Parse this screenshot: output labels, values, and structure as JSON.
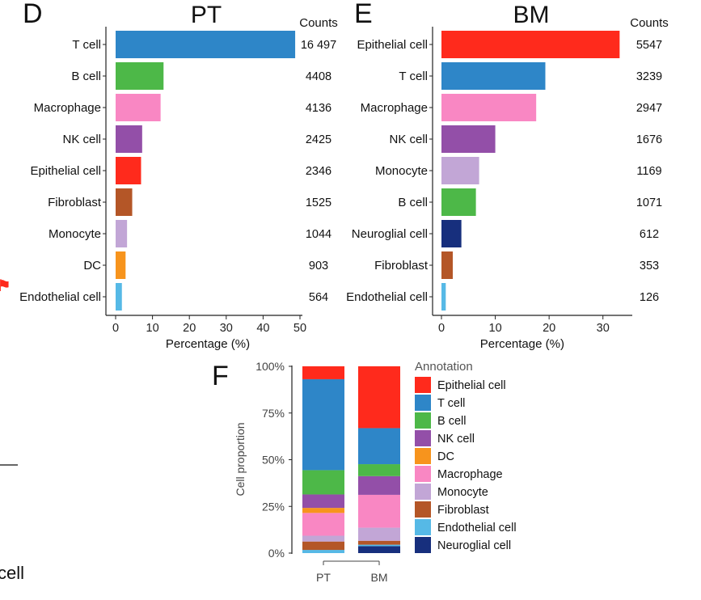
{
  "panel_labels": {
    "D": "D",
    "E": "E",
    "F": "F"
  },
  "stray": {
    "left_icon": "⚑",
    "cell_fragment": "cell"
  },
  "chart_data": [
    {
      "id": "PT",
      "type": "bar",
      "orientation": "horizontal",
      "title": "PT",
      "counts_header": "Counts",
      "xlabel": "Percentage (%)",
      "xlim": [
        0,
        50
      ],
      "xticks": [
        0,
        10,
        20,
        30,
        40,
        50
      ],
      "categories": [
        "T cell",
        "B cell",
        "Macrophage",
        "NK cell",
        "Epithelial cell",
        "Fibroblast",
        "Monocyte",
        "DC",
        "Endothelial cell"
      ],
      "values": [
        48.7,
        13.0,
        12.2,
        7.2,
        6.9,
        4.5,
        3.1,
        2.7,
        1.7
      ],
      "count_labels": [
        "16 497",
        "4408",
        "4136",
        "2425",
        "2346",
        "1525",
        "1044",
        "903",
        "564"
      ],
      "colors": [
        "#2E86C8",
        "#4DB848",
        "#F987C3",
        "#934FA8",
        "#FF2A1C",
        "#B45627",
        "#C2A6D6",
        "#F7941D",
        "#56B9E6"
      ]
    },
    {
      "id": "BM",
      "type": "bar",
      "orientation": "horizontal",
      "title": "BM",
      "counts_header": "Counts",
      "xlabel": "Percentage (%)",
      "xlim": [
        0,
        35
      ],
      "xticks": [
        0,
        10,
        20,
        30
      ],
      "categories": [
        "Epithelial cell",
        "T cell",
        "Macrophage",
        "NK cell",
        "Monocyte",
        "B cell",
        "Neuroglial cell",
        "Fibroblast",
        "Endothelial cell"
      ],
      "values": [
        33.1,
        19.3,
        17.6,
        10.0,
        7.0,
        6.4,
        3.7,
        2.1,
        0.8
      ],
      "count_labels": [
        "5547",
        "3239",
        "2947",
        "1676",
        "1169",
        "1071",
        "612",
        "353",
        "126"
      ],
      "colors": [
        "#FF2A1C",
        "#2E86C8",
        "#F987C3",
        "#934FA8",
        "#C2A6D6",
        "#4DB848",
        "#172F7D",
        "#B45627",
        "#56B9E6"
      ]
    },
    {
      "id": "F",
      "type": "bar",
      "stacked": true,
      "ylabel": "Cell proportion",
      "yticks": [
        "0%",
        "25%",
        "50%",
        "75%",
        "100%"
      ],
      "categories": [
        "PT",
        "BM"
      ],
      "legend_title": "Annotation",
      "legend_position": "right",
      "series": [
        {
          "name": "Neuroglial cell",
          "color": "#172F7D",
          "values": [
            0.0,
            3.7
          ]
        },
        {
          "name": "Endothelial cell",
          "color": "#56B9E6",
          "values": [
            1.7,
            0.8
          ]
        },
        {
          "name": "Fibroblast",
          "color": "#B45627",
          "values": [
            4.5,
            2.1
          ]
        },
        {
          "name": "Monocyte",
          "color": "#C2A6D6",
          "values": [
            3.1,
            7.0
          ]
        },
        {
          "name": "Macrophage",
          "color": "#F987C3",
          "values": [
            12.2,
            17.6
          ]
        },
        {
          "name": "DC",
          "color": "#F7941D",
          "values": [
            2.7,
            0.0
          ]
        },
        {
          "name": "NK cell",
          "color": "#934FA8",
          "values": [
            7.2,
            10.0
          ]
        },
        {
          "name": "B cell",
          "color": "#4DB848",
          "values": [
            13.0,
            6.4
          ]
        },
        {
          "name": "T cell",
          "color": "#2E86C8",
          "values": [
            48.7,
            19.3
          ]
        },
        {
          "name": "Epithelial cell",
          "color": "#FF2A1C",
          "values": [
            6.9,
            33.1
          ]
        }
      ],
      "legend_order": [
        "Epithelial cell",
        "T cell",
        "B cell",
        "NK cell",
        "DC",
        "Macrophage",
        "Monocyte",
        "Fibroblast",
        "Endothelial cell",
        "Neuroglial cell"
      ]
    }
  ]
}
